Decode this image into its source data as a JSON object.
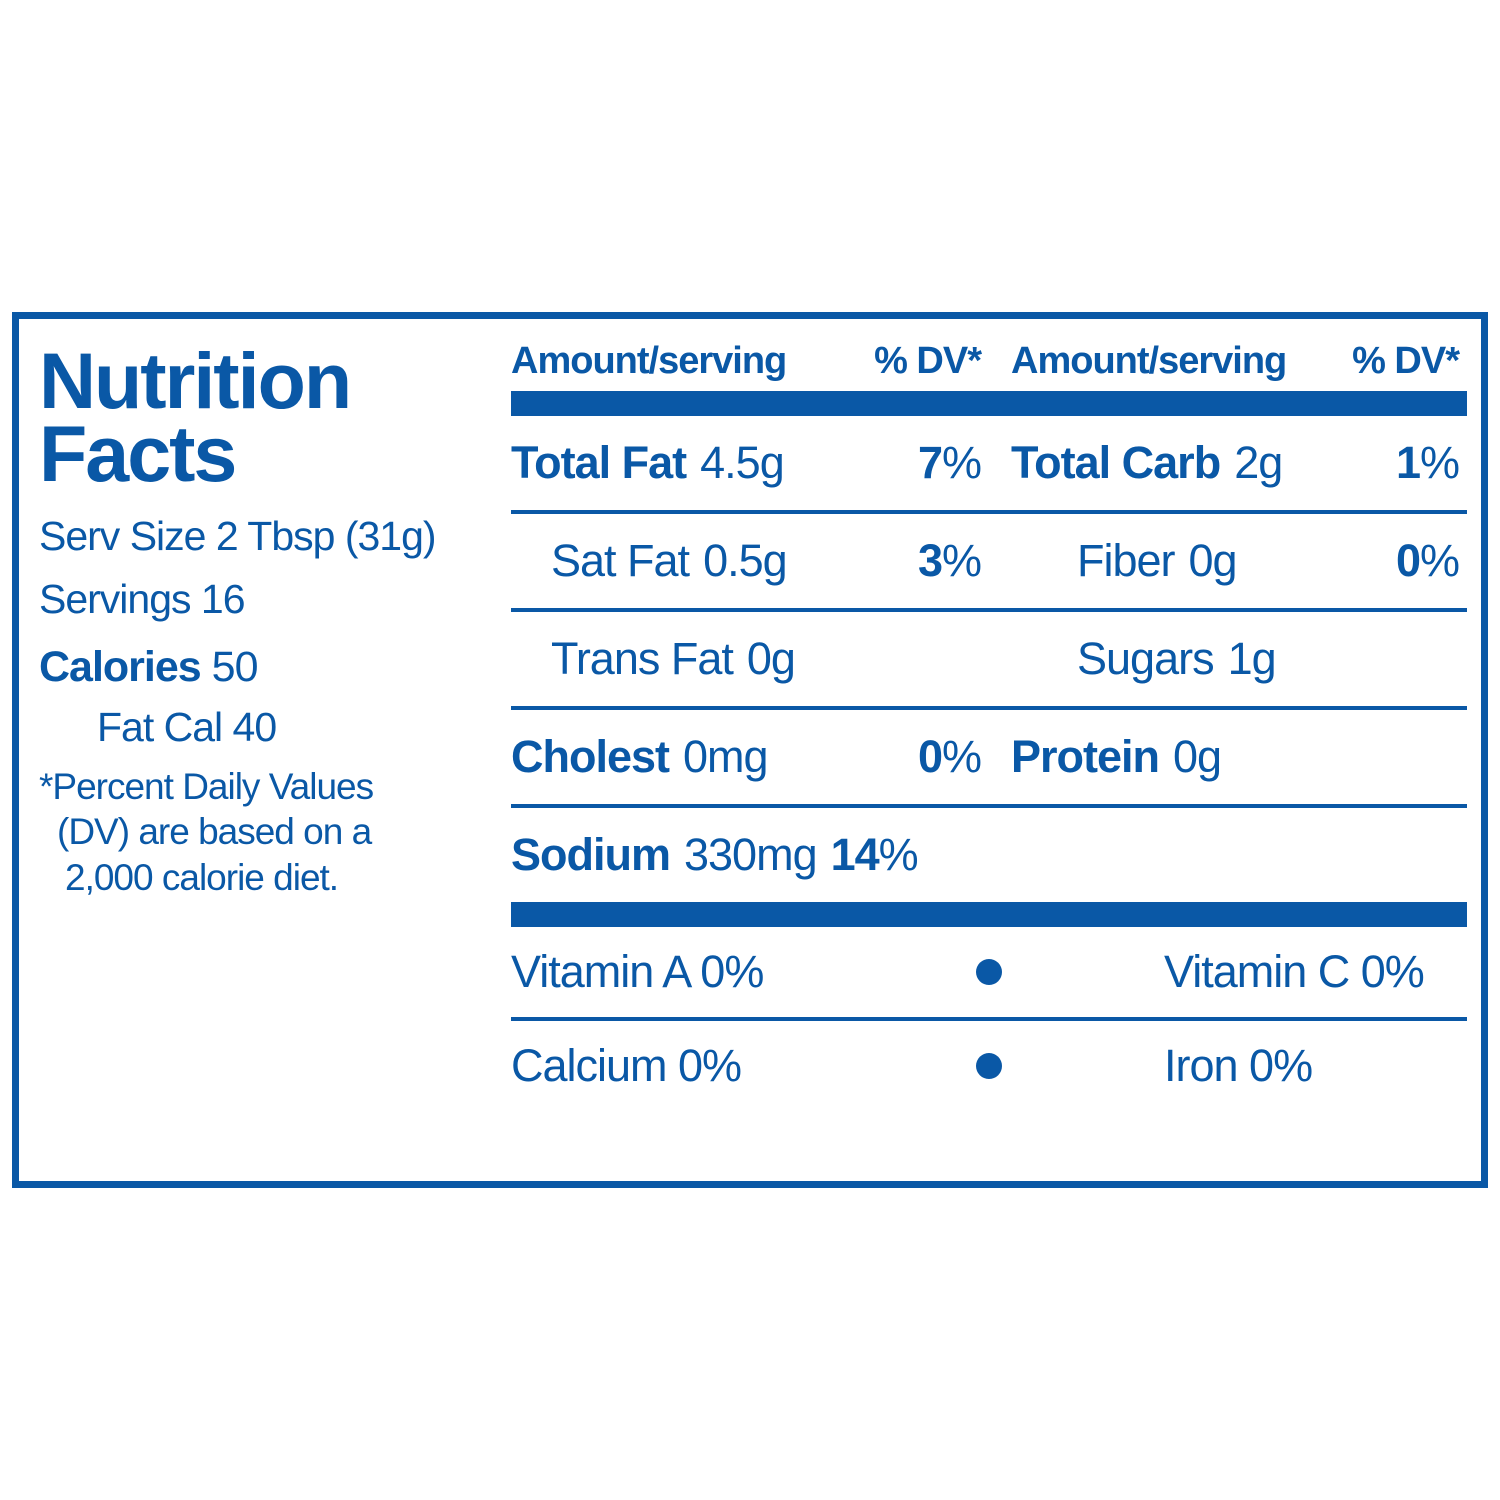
{
  "colors": {
    "blue": "#0a58a6"
  },
  "panel": {
    "title_line1": "Nutrition",
    "title_line2": "Facts",
    "serv_size": "Serv Size 2 Tbsp (31g)",
    "servings": "Servings 16",
    "calories_label": "Calories",
    "calories_value": "50",
    "fat_cal": "Fat Cal 40",
    "footnote": {
      "0": "*Percent Daily Values",
      "1": "(DV) are based on a",
      "2": "2,000 calorie diet."
    }
  },
  "table": {
    "header_amount": "Amount/serving",
    "header_dv": "% DV*",
    "percent_sign": "%",
    "rows": [
      {
        "left": {
          "label": "Total Fat",
          "value": "4.5g",
          "dv": "7"
        },
        "right": {
          "label": "Total Carb",
          "value": "2g",
          "dv": "1"
        }
      },
      {
        "left": {
          "label": "Sat Fat",
          "value": "0.5g",
          "dv": "3"
        },
        "right": {
          "label": "Fiber",
          "value": "0g",
          "dv": "0"
        }
      },
      {
        "left": {
          "label": "Trans Fat",
          "value": "0g"
        },
        "right": {
          "label": "Sugars",
          "value": "1g"
        }
      },
      {
        "left": {
          "label": "Cholest",
          "value": "0mg",
          "dv": "0"
        },
        "right": {
          "label": "Protein",
          "value": "0g"
        }
      }
    ],
    "sodium": {
      "label": "Sodium",
      "value": "330mg",
      "dv": "14"
    },
    "micros": [
      {
        "left": "Vitamin A 0%",
        "right": "Vitamin C 0%"
      },
      {
        "left": "Calcium 0%",
        "right": "Iron 0%"
      }
    ]
  }
}
